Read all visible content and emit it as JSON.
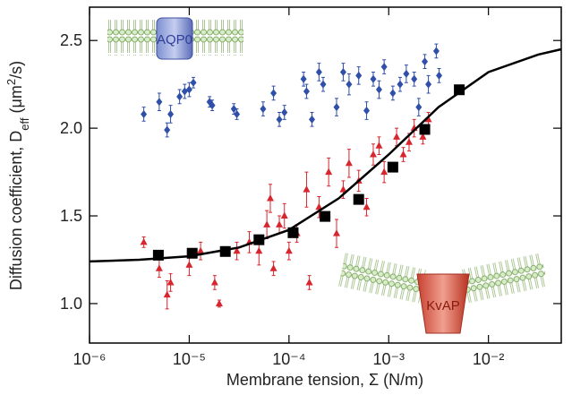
{
  "chart_data": {
    "type": "scatter",
    "xscale": "log",
    "xlabel": "Membrane tension, Σ (N/m)",
    "ylabel": [
      "Diffusion coefficient, D",
      "eff",
      " (μm",
      "2",
      "/s)"
    ],
    "xlim": [
      1e-06,
      0.0537
    ],
    "ylim": [
      0.775,
      2.69
    ],
    "xticks": [
      {
        "value": 1e-06,
        "label": "10⁻⁶"
      },
      {
        "value": 1e-05,
        "label": "10⁻⁵"
      },
      {
        "value": 0.0001,
        "label": "10⁻⁴"
      },
      {
        "value": 0.001,
        "label": "10⁻³"
      },
      {
        "value": 0.01,
        "label": "10⁻²"
      }
    ],
    "yticks": [
      {
        "value": 1,
        "label": "1.0"
      },
      1.5,
      {
        "value": 2,
        "label": "2.0"
      },
      2.5
    ],
    "series": [
      {
        "name": "AQP0",
        "color": "#2f4fa8",
        "marker": "diamond",
        "x": [
          3.5e-06,
          5e-06,
          6e-06,
          6.5e-06,
          8e-06,
          9e-06,
          1e-05,
          1.1e-05,
          1.6e-05,
          1.7e-05,
          2.8e-05,
          3e-05,
          5.5e-05,
          7e-05,
          8e-05,
          9e-05,
          0.00014,
          0.00015,
          0.00017,
          0.0002,
          0.00022,
          0.0003,
          0.00035,
          0.0004,
          0.0005,
          0.0006,
          0.0007,
          0.0008,
          0.0009,
          0.0011,
          0.0013,
          0.0015,
          0.0018,
          0.002,
          0.0023,
          0.0025,
          0.003,
          0.0032
        ],
        "y": [
          2.08,
          2.15,
          1.99,
          2.08,
          2.18,
          2.21,
          2.22,
          2.26,
          2.15,
          2.13,
          2.11,
          2.08,
          2.11,
          2.2,
          2.05,
          2.09,
          2.28,
          2.21,
          2.05,
          2.32,
          2.25,
          2.12,
          2.32,
          2.25,
          2.3,
          2.1,
          2.28,
          2.22,
          2.35,
          2.2,
          2.25,
          2.31,
          2.28,
          2.12,
          2.38,
          2.25,
          2.44,
          2.3
        ],
        "error": [
          0.04,
          0.05,
          0.04,
          0.05,
          0.04,
          0.04,
          0.04,
          0.03,
          0.03,
          0.03,
          0.03,
          0.03,
          0.04,
          0.04,
          0.04,
          0.04,
          0.04,
          0.04,
          0.04,
          0.05,
          0.04,
          0.05,
          0.05,
          0.06,
          0.05,
          0.05,
          0.04,
          0.05,
          0.04,
          0.04,
          0.04,
          0.05,
          0.04,
          0.05,
          0.04,
          0.05,
          0.04,
          0.04
        ]
      },
      {
        "name": "KvAP",
        "color": "#d8262e",
        "marker": "triangle",
        "x": [
          3.5e-06,
          5e-06,
          6e-06,
          6.5e-06,
          1e-05,
          1.3e-05,
          1.8e-05,
          2e-05,
          3e-05,
          4e-05,
          5e-05,
          6e-05,
          6.5e-05,
          7e-05,
          8e-05,
          9e-05,
          0.0001,
          0.00012,
          0.00015,
          0.00016,
          0.0002,
          0.00025,
          0.0003,
          0.00035,
          0.0004,
          0.0005,
          0.0006,
          0.0007,
          0.0008,
          0.0009,
          0.0012,
          0.0014,
          0.0016,
          0.0018,
          0.0022,
          0.0025
        ],
        "y": [
          1.35,
          1.2,
          1.05,
          1.12,
          1.22,
          1.3,
          1.12,
          1.0,
          1.3,
          1.35,
          1.3,
          1.45,
          1.6,
          1.2,
          1.45,
          1.5,
          1.3,
          1.4,
          1.65,
          1.12,
          1.55,
          1.75,
          1.4,
          1.65,
          1.8,
          1.7,
          1.55,
          1.85,
          1.9,
          1.75,
          1.95,
          1.85,
          1.92,
          2.0,
          1.95,
          2.05
        ],
        "error": [
          0.03,
          0.05,
          0.08,
          0.05,
          0.06,
          0.05,
          0.04,
          0.02,
          0.05,
          0.06,
          0.08,
          0.08,
          0.08,
          0.04,
          0.05,
          0.07,
          0.05,
          0.05,
          0.1,
          0.04,
          0.06,
          0.08,
          0.08,
          0.05,
          0.08,
          0.06,
          0.05,
          0.06,
          0.05,
          0.06,
          0.05,
          0.04,
          0.05,
          0.05,
          0.04,
          0.04
        ]
      },
      {
        "color": "#000000",
        "marker": "square",
        "x": [
          4.9e-06,
          1.07e-05,
          2.3e-05,
          5e-05,
          0.00011,
          0.00023,
          0.0005,
          0.0011,
          0.0023,
          0.0051
        ],
        "y": [
          1.276,
          1.287,
          1.297,
          1.364,
          1.404,
          1.497,
          1.594,
          1.778,
          1.993,
          2.219
        ]
      },
      {
        "color": "#000000",
        "marker": "line",
        "x": [
          1e-06,
          3.16e-06,
          1e-05,
          3.16e-05,
          0.0001,
          0.000316,
          0.001,
          0.00316,
          0.01,
          0.0316,
          0.0537
        ],
        "y": [
          1.24,
          1.25,
          1.27,
          1.32,
          1.42,
          1.6,
          1.85,
          2.12,
          2.32,
          2.42,
          2.45
        ]
      }
    ]
  }
}
